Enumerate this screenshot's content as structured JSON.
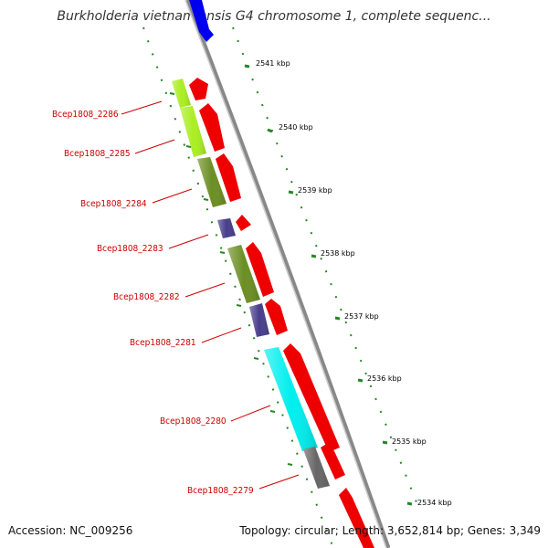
{
  "map": {
    "title": "Burkholderia vietnamiensis G4 chromosome 1, complete sequenc...",
    "accession": "Accession: NC_009256",
    "summary": "Topology: circular; Length: 3,652,814 bp; Genes: 3,349"
  },
  "ticks": [
    "2541 kbp",
    "2540 kbp",
    "2539 kbp",
    "2538 kbp",
    "2537 kbp",
    "2536 kbp",
    "2535 kbp",
    "2534 kbp"
  ],
  "genes": [
    {
      "label": "Bcep1808_2286",
      "cog_color": "#aaee22"
    },
    {
      "label": "Bcep1808_2285",
      "cog_color": "#aaee22"
    },
    {
      "label": "Bcep1808_2284",
      "cog_color": "#6b8e23"
    },
    {
      "label": "Bcep1808_2283",
      "cog_color": "#483d8b"
    },
    {
      "label": "Bcep1808_2282",
      "cog_color": "#6b8e23"
    },
    {
      "label": "Bcep1808_2281",
      "cog_color": "#483d8b"
    },
    {
      "label": "Bcep1808_2280",
      "cog_color": "#00eeee"
    },
    {
      "label": "Bcep1808_2279",
      "cog_color": "#666666"
    }
  ],
  "colors": {
    "cds_forward": "#ee0000",
    "backbone": "#888888",
    "ruler": "#228822",
    "label": "#cc0000",
    "top_feature": "#0000ee"
  }
}
